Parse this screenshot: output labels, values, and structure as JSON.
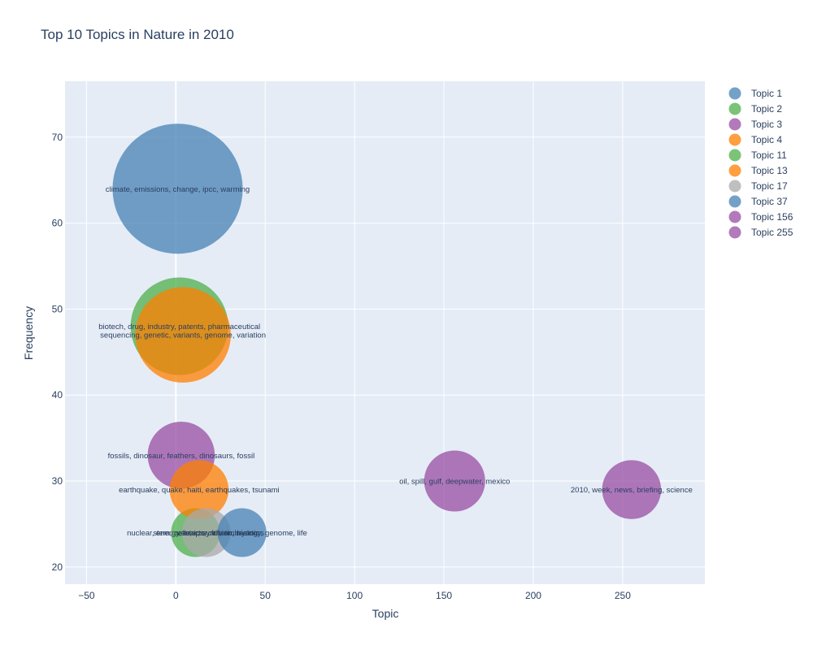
{
  "chart_data": {
    "type": "scatter",
    "title": "Top 10 Topics in Nature in 2010",
    "xlabel": "Topic",
    "ylabel": "Frequency",
    "xlim": [
      -62,
      296
    ],
    "ylim": [
      18,
      76.5
    ],
    "xticks": [
      -50,
      0,
      50,
      100,
      150,
      200,
      250
    ],
    "yticks": [
      20,
      30,
      40,
      50,
      60,
      70
    ],
    "grid": true,
    "legend_position": "right",
    "series": [
      {
        "name": "Topic 1",
        "x": 1,
        "y": 64,
        "size": 64,
        "color": "#4682b4",
        "label": "climate, emissions, change, ipcc, warming"
      },
      {
        "name": "Topic 2",
        "x": 2,
        "y": 48,
        "size": 48,
        "color": "#4daf4a",
        "label": "biotech, drug, industry, patents, pharmaceutical"
      },
      {
        "name": "Topic 3",
        "x": 3,
        "y": 33,
        "size": 33,
        "color": "#984ea3",
        "label": "fossils, dinosaur, feathers, dinosaurs, fossil"
      },
      {
        "name": "Topic 4",
        "x": 4,
        "y": 47,
        "size": 47,
        "color": "#ff7f00",
        "label": "sequencing, genetic, variants, genome, variation"
      },
      {
        "name": "Topic 11",
        "x": 11,
        "y": 24,
        "size": 24,
        "color": "#4daf4a",
        "label": "nuclear, energy, reactor, fusion, reactors"
      },
      {
        "name": "Topic 13",
        "x": 13,
        "y": 29,
        "size": 29,
        "color": "#ff7f00",
        "label": "earthquake, quake, haiti, earthquakes, tsunami"
      },
      {
        "name": "Topic 17",
        "x": 17,
        "y": 24,
        "size": 24,
        "color": "#aaaaaa",
        "label": "stem, cells, ips, cell, embryonic"
      },
      {
        "name": "Topic 37",
        "x": 37,
        "y": 24,
        "size": 24,
        "color": "#4682b4",
        "label": "venter, synthetic, biology, genome, life"
      },
      {
        "name": "Topic 156",
        "x": 156,
        "y": 30,
        "size": 30,
        "color": "#984ea3",
        "label": "oil, spill, gulf, deepwater, mexico"
      },
      {
        "name": "Topic 255",
        "x": 255,
        "y": 29,
        "size": 29,
        "color": "#984ea3",
        "label": "2010, week, news, briefing, science"
      }
    ]
  }
}
